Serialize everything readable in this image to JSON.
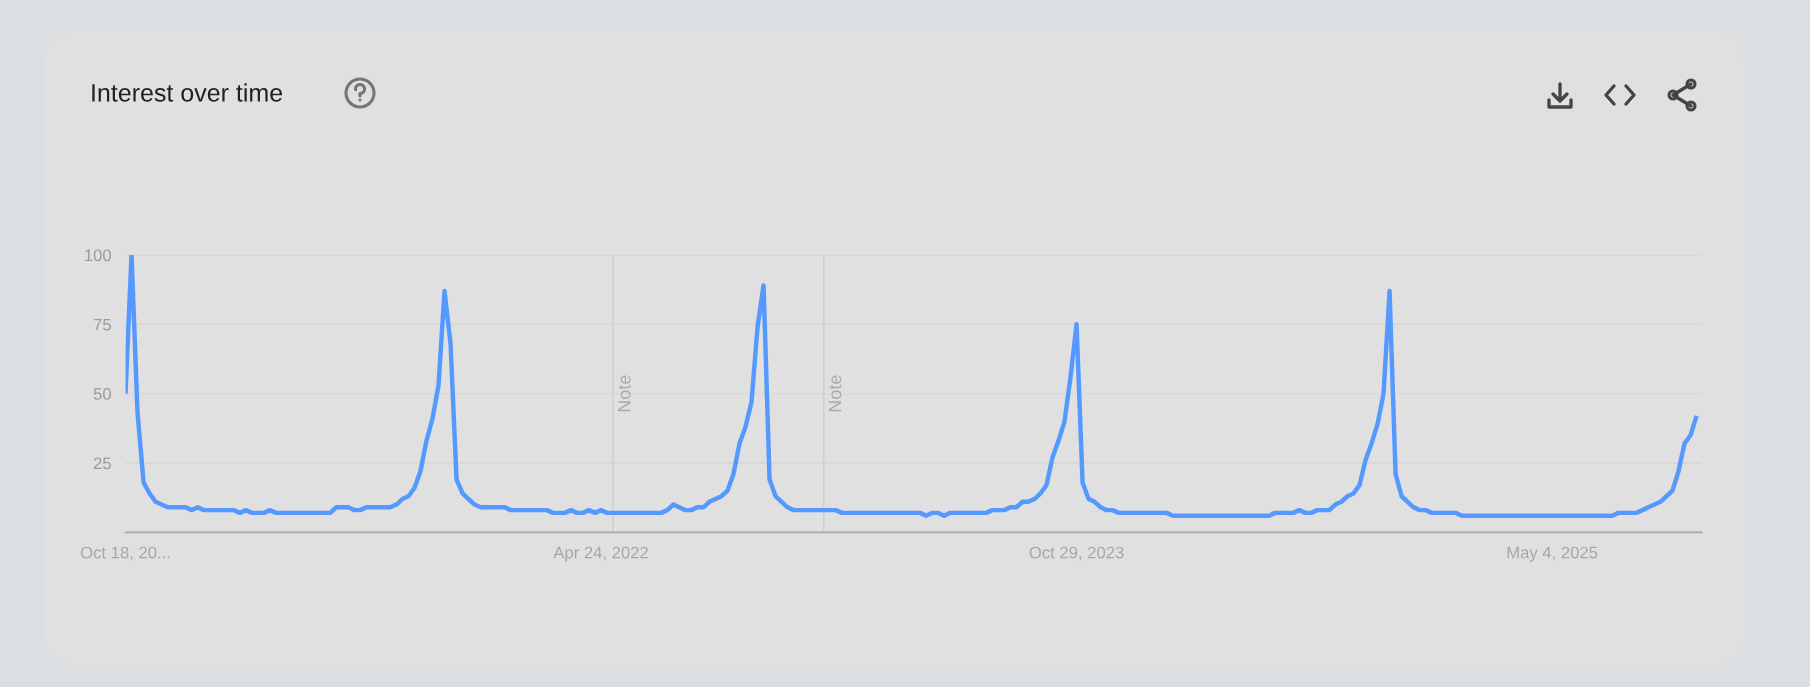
{
  "chart_data": {
    "type": "line",
    "title": "Interest over time",
    "x": [
      "2020-10-18",
      "2020-10-25",
      "2020-11-01",
      "2020-11-08",
      "2020-11-15",
      "2020-11-22",
      "2020-11-29",
      "2020-12-06",
      "2020-12-27",
      "2021-01-03",
      "2021-01-10",
      "2021-01-17",
      "2021-02-21",
      "2021-02-28",
      "2021-03-07",
      "2021-03-14",
      "2021-03-28",
      "2021-04-04",
      "2021-04-11",
      "2021-06-13",
      "2021-06-20",
      "2021-07-04",
      "2021-07-11",
      "2021-07-18",
      "2021-07-25",
      "2021-08-22",
      "2021-08-29",
      "2021-09-05",
      "2021-09-12",
      "2021-09-19",
      "2021-09-26",
      "2021-10-03",
      "2021-10-10",
      "2021-10-17",
      "2021-10-24",
      "2021-10-31",
      "2021-11-07",
      "2021-11-14",
      "2021-11-21",
      "2021-11-28",
      "2021-12-05",
      "2022-01-02",
      "2022-01-09",
      "2022-02-20",
      "2022-02-27",
      "2022-03-13",
      "2022-03-20",
      "2022-03-27",
      "2022-04-03",
      "2022-04-10",
      "2022-04-17",
      "2022-04-24",
      "2022-05-01",
      "2022-07-03",
      "2022-07-10",
      "2022-07-17",
      "2022-07-31",
      "2022-08-07",
      "2022-08-14",
      "2022-08-21",
      "2022-08-28",
      "2022-09-04",
      "2022-09-11",
      "2022-09-18",
      "2022-09-25",
      "2022-10-02",
      "2022-10-09",
      "2022-10-16",
      "2022-10-23",
      "2022-10-30",
      "2022-11-06",
      "2022-11-13",
      "2022-11-20",
      "2022-11-27",
      "2022-12-04",
      "2023-01-22",
      "2023-01-29",
      "2023-04-30",
      "2023-05-07",
      "2023-05-14",
      "2023-05-21",
      "2023-05-28",
      "2023-06-04",
      "2023-07-16",
      "2023-07-23",
      "2023-08-06",
      "2023-08-13",
      "2023-08-20",
      "2023-08-27",
      "2023-09-03",
      "2023-09-10",
      "2023-09-17",
      "2023-09-24",
      "2023-10-01",
      "2023-10-08",
      "2023-10-15",
      "2023-10-22",
      "2023-10-29",
      "2023-11-05",
      "2023-11-12",
      "2023-11-19",
      "2023-11-26",
      "2023-12-03",
      "2023-12-10",
      "2023-12-17",
      "2024-02-11",
      "2024-02-18",
      "2024-06-09",
      "2024-06-16",
      "2024-07-07",
      "2024-07-14",
      "2024-07-21",
      "2024-07-28",
      "2024-08-04",
      "2024-08-18",
      "2024-08-25",
      "2024-09-01",
      "2024-09-08",
      "2024-09-15",
      "2024-09-22",
      "2024-09-29",
      "2024-10-06",
      "2024-10-13",
      "2024-10-20",
      "2024-10-27",
      "2024-11-03",
      "2024-11-10",
      "2024-11-17",
      "2024-11-24",
      "2024-12-01",
      "2024-12-08",
      "2024-12-15",
      "2025-01-12",
      "2025-01-19",
      "2025-07-13",
      "2025-07-20",
      "2025-08-10",
      "2025-08-17",
      "2025-08-24",
      "2025-08-31",
      "2025-09-07",
      "2025-09-14",
      "2025-09-21",
      "2025-09-28",
      "2025-10-05",
      "2025-10-12",
      "2025-10-19"
    ],
    "series": [
      {
        "color": "#5599ff",
        "values": [
          50,
          100,
          43,
          18,
          14,
          11,
          10,
          9,
          9,
          8,
          9,
          8,
          8,
          7,
          8,
          7,
          7,
          8,
          7,
          7,
          9,
          9,
          8,
          8,
          9,
          9,
          10,
          12,
          13,
          16,
          22,
          33,
          41,
          53,
          87,
          68,
          19,
          14,
          12,
          10,
          9,
          9,
          8,
          8,
          7,
          7,
          8,
          7,
          7,
          8,
          7,
          8,
          7,
          7,
          8,
          10,
          8,
          8,
          9,
          9,
          11,
          12,
          13,
          15,
          21,
          32,
          38,
          47,
          74,
          89,
          19,
          13,
          11,
          9,
          8,
          8,
          7,
          7,
          6,
          7,
          7,
          6,
          7,
          7,
          8,
          8,
          9,
          9,
          11,
          11,
          12,
          14,
          17,
          27,
          33,
          40,
          56,
          75,
          18,
          12,
          11,
          9,
          8,
          8,
          7,
          7,
          6,
          6,
          7,
          7,
          8,
          7,
          7,
          8,
          8,
          10,
          11,
          13,
          14,
          17,
          26,
          32,
          39,
          50,
          87,
          21,
          13,
          11,
          9,
          8,
          8,
          7,
          7,
          6,
          6,
          7,
          7,
          8,
          9,
          10,
          11,
          13,
          15,
          22,
          32,
          35,
          42
        ]
      }
    ],
    "xlim": [
      "2020-10-18",
      "2025-10-25"
    ],
    "xticks": [
      {
        "value": "2020-10-18",
        "label": "Oct 18, 20..."
      },
      {
        "value": "2022-04-24",
        "label": "Apr 24, 2022"
      },
      {
        "value": "2023-10-29",
        "label": "Oct 29, 2023"
      },
      {
        "value": "2025-05-04",
        "label": "May 4, 2025"
      }
    ],
    "ylim": [
      0,
      100
    ],
    "yticks": [
      25,
      50,
      75,
      100
    ],
    "grid": "y",
    "line_style": "solid",
    "ref_lines": [
      {
        "axis": "x",
        "value": "2022-05-08",
        "label": "Note",
        "color": "#d0d0d0"
      },
      {
        "axis": "x",
        "value": "2023-01-08",
        "label": "Note",
        "color": "#d0d0d0"
      }
    ]
  }
}
